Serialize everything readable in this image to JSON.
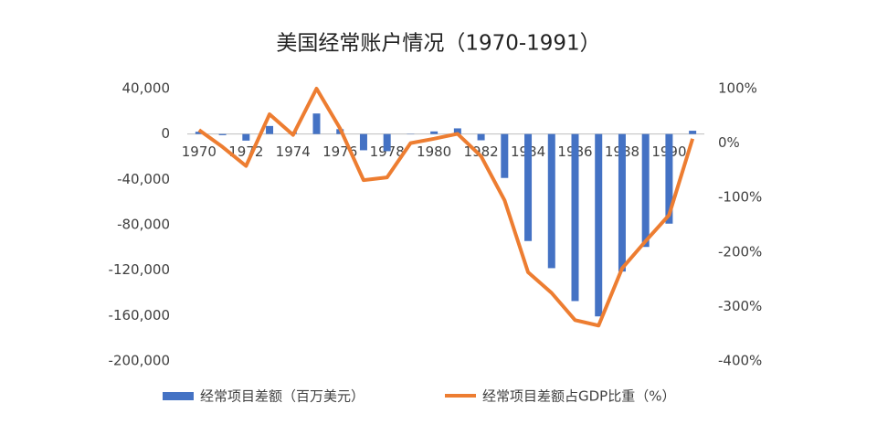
{
  "chart_data": {
    "type": "bar-line",
    "title": "美国经常账户情况（1970-1991）",
    "categories": [
      "1970",
      null,
      "1972",
      null,
      "1974",
      null,
      "1976",
      null,
      "1978",
      null,
      "1980",
      null,
      "1982",
      null,
      "1984",
      null,
      "1986",
      null,
      "1988",
      null,
      "1990",
      null
    ],
    "series": [
      {
        "name": "经常项目差额（百万美元）",
        "type": "bar",
        "color": "#4472c4",
        "axis": "y",
        "values": [
          2000,
          -1000,
          -5800,
          7100,
          2000,
          18100,
          4300,
          -14300,
          -15100,
          -300,
          2300,
          5000,
          -5500,
          -38700,
          -94300,
          -118200,
          -147200,
          -160700,
          -121200,
          -99500,
          -79000,
          2900
        ]
      },
      {
        "name": "经常项目差额占GDP比重（%）",
        "type": "line",
        "color": "#ed7d31",
        "axis": "y2",
        "values": [
          24,
          -7,
          -42,
          53,
          15,
          100,
          27,
          -68,
          -63,
          0,
          8,
          17,
          -24,
          -105,
          -237,
          -275,
          -325,
          -335,
          -230,
          -180,
          -132,
          8
        ]
      }
    ],
    "ylim": [
      -200000,
      40000
    ],
    "yticks": [
      {
        "value": 40000,
        "label": "40,000"
      },
      0,
      {
        "value": -40000,
        "label": "-40,000"
      },
      {
        "value": -80000,
        "label": "-80,000"
      },
      {
        "value": -120000,
        "label": "-120,000"
      },
      {
        "value": -160000,
        "label": "-160,000"
      },
      {
        "value": -200000,
        "label": "-200,000"
      }
    ],
    "y2lim": [
      -400,
      100
    ],
    "y2ticks": [
      {
        "value": 100,
        "label": "100%"
      },
      {
        "value": 0,
        "label": "0%"
      },
      {
        "value": -100,
        "label": "-100%"
      },
      {
        "value": -200,
        "label": "-200%"
      },
      {
        "value": -300,
        "label": "-300%"
      },
      {
        "value": -400,
        "label": "-400%"
      }
    ],
    "grid": false,
    "legend": "bottom"
  }
}
